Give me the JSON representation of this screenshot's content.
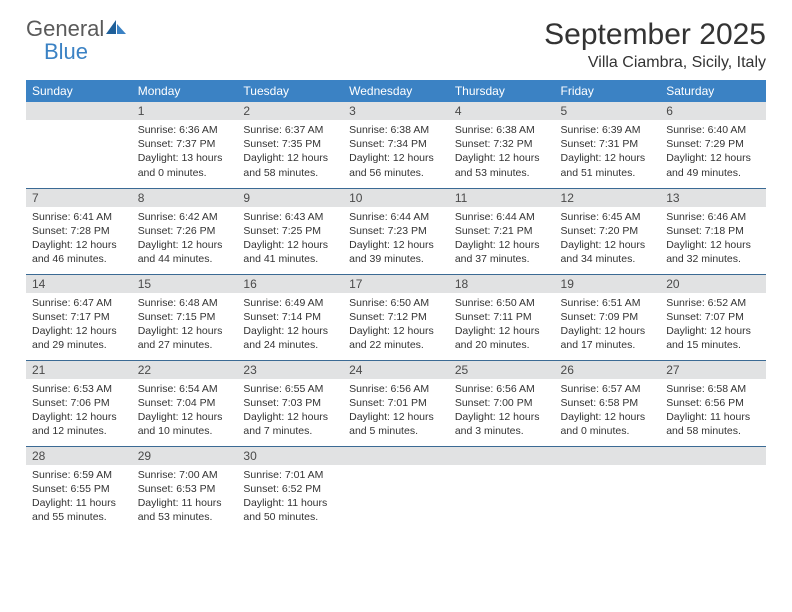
{
  "logo": {
    "word1": "General",
    "word2": "Blue"
  },
  "title": "September 2025",
  "location": "Villa Ciambra, Sicily, Italy",
  "colors": {
    "header_bg": "#3b82c4",
    "header_text": "#ffffff",
    "daynum_bg": "#e1e2e3",
    "daynum_text": "#4a4a4a",
    "body_text": "#333333",
    "rule": "#2f5f87",
    "logo_gray": "#5a5a5a",
    "logo_blue": "#3b82c4"
  },
  "fonts": {
    "title_size_pt": 22,
    "location_size_pt": 12,
    "header_size_pt": 9,
    "daynum_size_pt": 9,
    "body_size_pt": 8
  },
  "day_headers": [
    "Sunday",
    "Monday",
    "Tuesday",
    "Wednesday",
    "Thursday",
    "Friday",
    "Saturday"
  ],
  "weeks": [
    [
      {
        "n": "",
        "sunrise": "",
        "sunset": "",
        "daylight": ""
      },
      {
        "n": "1",
        "sunrise": "Sunrise: 6:36 AM",
        "sunset": "Sunset: 7:37 PM",
        "daylight": "Daylight: 13 hours and 0 minutes."
      },
      {
        "n": "2",
        "sunrise": "Sunrise: 6:37 AM",
        "sunset": "Sunset: 7:35 PM",
        "daylight": "Daylight: 12 hours and 58 minutes."
      },
      {
        "n": "3",
        "sunrise": "Sunrise: 6:38 AM",
        "sunset": "Sunset: 7:34 PM",
        "daylight": "Daylight: 12 hours and 56 minutes."
      },
      {
        "n": "4",
        "sunrise": "Sunrise: 6:38 AM",
        "sunset": "Sunset: 7:32 PM",
        "daylight": "Daylight: 12 hours and 53 minutes."
      },
      {
        "n": "5",
        "sunrise": "Sunrise: 6:39 AM",
        "sunset": "Sunset: 7:31 PM",
        "daylight": "Daylight: 12 hours and 51 minutes."
      },
      {
        "n": "6",
        "sunrise": "Sunrise: 6:40 AM",
        "sunset": "Sunset: 7:29 PM",
        "daylight": "Daylight: 12 hours and 49 minutes."
      }
    ],
    [
      {
        "n": "7",
        "sunrise": "Sunrise: 6:41 AM",
        "sunset": "Sunset: 7:28 PM",
        "daylight": "Daylight: 12 hours and 46 minutes."
      },
      {
        "n": "8",
        "sunrise": "Sunrise: 6:42 AM",
        "sunset": "Sunset: 7:26 PM",
        "daylight": "Daylight: 12 hours and 44 minutes."
      },
      {
        "n": "9",
        "sunrise": "Sunrise: 6:43 AM",
        "sunset": "Sunset: 7:25 PM",
        "daylight": "Daylight: 12 hours and 41 minutes."
      },
      {
        "n": "10",
        "sunrise": "Sunrise: 6:44 AM",
        "sunset": "Sunset: 7:23 PM",
        "daylight": "Daylight: 12 hours and 39 minutes."
      },
      {
        "n": "11",
        "sunrise": "Sunrise: 6:44 AM",
        "sunset": "Sunset: 7:21 PM",
        "daylight": "Daylight: 12 hours and 37 minutes."
      },
      {
        "n": "12",
        "sunrise": "Sunrise: 6:45 AM",
        "sunset": "Sunset: 7:20 PM",
        "daylight": "Daylight: 12 hours and 34 minutes."
      },
      {
        "n": "13",
        "sunrise": "Sunrise: 6:46 AM",
        "sunset": "Sunset: 7:18 PM",
        "daylight": "Daylight: 12 hours and 32 minutes."
      }
    ],
    [
      {
        "n": "14",
        "sunrise": "Sunrise: 6:47 AM",
        "sunset": "Sunset: 7:17 PM",
        "daylight": "Daylight: 12 hours and 29 minutes."
      },
      {
        "n": "15",
        "sunrise": "Sunrise: 6:48 AM",
        "sunset": "Sunset: 7:15 PM",
        "daylight": "Daylight: 12 hours and 27 minutes."
      },
      {
        "n": "16",
        "sunrise": "Sunrise: 6:49 AM",
        "sunset": "Sunset: 7:14 PM",
        "daylight": "Daylight: 12 hours and 24 minutes."
      },
      {
        "n": "17",
        "sunrise": "Sunrise: 6:50 AM",
        "sunset": "Sunset: 7:12 PM",
        "daylight": "Daylight: 12 hours and 22 minutes."
      },
      {
        "n": "18",
        "sunrise": "Sunrise: 6:50 AM",
        "sunset": "Sunset: 7:11 PM",
        "daylight": "Daylight: 12 hours and 20 minutes."
      },
      {
        "n": "19",
        "sunrise": "Sunrise: 6:51 AM",
        "sunset": "Sunset: 7:09 PM",
        "daylight": "Daylight: 12 hours and 17 minutes."
      },
      {
        "n": "20",
        "sunrise": "Sunrise: 6:52 AM",
        "sunset": "Sunset: 7:07 PM",
        "daylight": "Daylight: 12 hours and 15 minutes."
      }
    ],
    [
      {
        "n": "21",
        "sunrise": "Sunrise: 6:53 AM",
        "sunset": "Sunset: 7:06 PM",
        "daylight": "Daylight: 12 hours and 12 minutes."
      },
      {
        "n": "22",
        "sunrise": "Sunrise: 6:54 AM",
        "sunset": "Sunset: 7:04 PM",
        "daylight": "Daylight: 12 hours and 10 minutes."
      },
      {
        "n": "23",
        "sunrise": "Sunrise: 6:55 AM",
        "sunset": "Sunset: 7:03 PM",
        "daylight": "Daylight: 12 hours and 7 minutes."
      },
      {
        "n": "24",
        "sunrise": "Sunrise: 6:56 AM",
        "sunset": "Sunset: 7:01 PM",
        "daylight": "Daylight: 12 hours and 5 minutes."
      },
      {
        "n": "25",
        "sunrise": "Sunrise: 6:56 AM",
        "sunset": "Sunset: 7:00 PM",
        "daylight": "Daylight: 12 hours and 3 minutes."
      },
      {
        "n": "26",
        "sunrise": "Sunrise: 6:57 AM",
        "sunset": "Sunset: 6:58 PM",
        "daylight": "Daylight: 12 hours and 0 minutes."
      },
      {
        "n": "27",
        "sunrise": "Sunrise: 6:58 AM",
        "sunset": "Sunset: 6:56 PM",
        "daylight": "Daylight: 11 hours and 58 minutes."
      }
    ],
    [
      {
        "n": "28",
        "sunrise": "Sunrise: 6:59 AM",
        "sunset": "Sunset: 6:55 PM",
        "daylight": "Daylight: 11 hours and 55 minutes."
      },
      {
        "n": "29",
        "sunrise": "Sunrise: 7:00 AM",
        "sunset": "Sunset: 6:53 PM",
        "daylight": "Daylight: 11 hours and 53 minutes."
      },
      {
        "n": "30",
        "sunrise": "Sunrise: 7:01 AM",
        "sunset": "Sunset: 6:52 PM",
        "daylight": "Daylight: 11 hours and 50 minutes."
      },
      {
        "n": "",
        "sunrise": "",
        "sunset": "",
        "daylight": ""
      },
      {
        "n": "",
        "sunrise": "",
        "sunset": "",
        "daylight": ""
      },
      {
        "n": "",
        "sunrise": "",
        "sunset": "",
        "daylight": ""
      },
      {
        "n": "",
        "sunrise": "",
        "sunset": "",
        "daylight": ""
      }
    ]
  ]
}
